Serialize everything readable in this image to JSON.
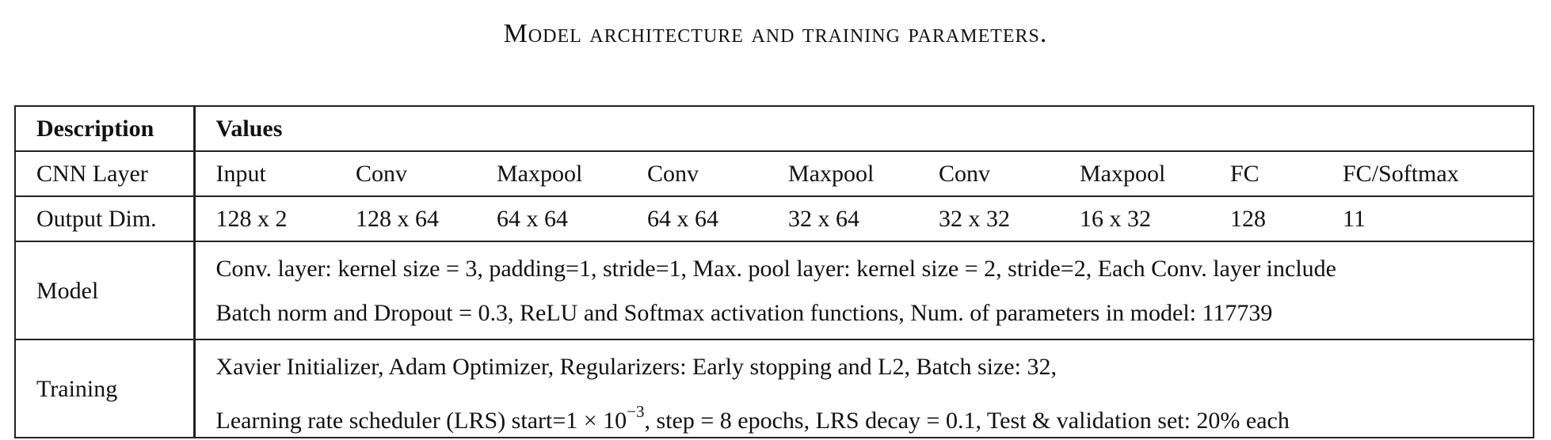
{
  "caption": "Model architecture and training parameters.",
  "table": {
    "header": {
      "description": "Description",
      "values": "Values"
    },
    "cnn_layer": {
      "label": "CNN Layer",
      "cells": [
        "Input",
        "Conv",
        "Maxpool",
        "Conv",
        "Maxpool",
        "Conv",
        "Maxpool",
        "FC",
        "FC/Softmax"
      ]
    },
    "output_dim": {
      "label": "Output Dim.",
      "cells": [
        "128 x 2",
        "128 x 64",
        "64 x 64",
        "64 x 64",
        "32 x 64",
        "32 x 32",
        "16 x 32",
        "128",
        "11"
      ]
    },
    "model": {
      "label": "Model",
      "line1": "Conv. layer: kernel size = 3, padding=1, stride=1, Max. pool layer: kernel size = 2, stride=2, Each Conv. layer include",
      "line2": "Batch norm and Dropout = 0.3, ReLU and Softmax activation functions, Num. of parameters in model: 117739"
    },
    "training": {
      "label": "Training",
      "line1": "Xavier Initializer, Adam Optimizer, Regularizers: Early stopping and L2, Batch size: 32,",
      "line2_prefix": "Learning rate scheduler (LRS) start=1 × 10",
      "line2_exponent": "−3",
      "line2_suffix": ", step = 8 epochs, LRS decay = 0.1, Test & validation set: 20% each"
    }
  }
}
